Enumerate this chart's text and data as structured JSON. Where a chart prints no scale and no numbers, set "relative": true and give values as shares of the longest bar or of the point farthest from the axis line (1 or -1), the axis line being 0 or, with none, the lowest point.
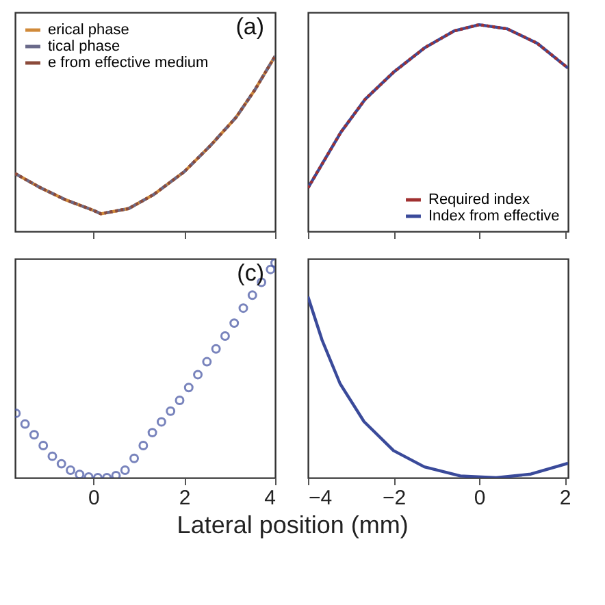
{
  "chart_data": [
    {
      "type": "line",
      "relative": true,
      "annotations": [
        "(a)"
      ],
      "legend": "top left",
      "tick_labels": false,
      "xlim": [
        -1.72,
        4
      ],
      "xticks": [
        0,
        2,
        4
      ],
      "x": [
        -1.72,
        -1.17,
        -0.61,
        0,
        0.17,
        0.78,
        1.33,
        2,
        2.58,
        3.14,
        3.56,
        4
      ],
      "series": [
        {
          "name": "erical phase",
          "color": "#d08a3a",
          "line_style": "solid",
          "values": [
            0.33,
            0.25,
            0.18,
            0.12,
            0.1,
            0.13,
            0.21,
            0.34,
            0.49,
            0.65,
            0.81,
            1.0
          ]
        },
        {
          "name": "tical phase",
          "color": "#6a6a8a",
          "line_style": "dashed",
          "values": [
            0.33,
            0.25,
            0.18,
            0.12,
            0.1,
            0.13,
            0.21,
            0.34,
            0.49,
            0.65,
            0.81,
            1.0
          ]
        },
        {
          "name": "e from effective medium",
          "color": "#8b4a3a",
          "line_style": "dotted",
          "values": [
            0.33,
            0.25,
            0.18,
            0.12,
            0.1,
            0.13,
            0.21,
            0.34,
            0.49,
            0.65,
            0.81,
            1.0
          ]
        }
      ]
    },
    {
      "type": "line",
      "relative": true,
      "legend": "bottom right",
      "tick_labels": false,
      "xlim": [
        -4,
        2.08
      ],
      "xticks": [
        -4,
        -2,
        0,
        2
      ],
      "x": [
        -4,
        -3.23,
        -2.66,
        -2,
        -1.26,
        -0.58,
        0,
        0.66,
        1.36,
        2.08
      ],
      "series": [
        {
          "name": "Required index",
          "color": "#a03030",
          "line_style": "dotted",
          "values": [
            0.21,
            0.48,
            0.64,
            0.77,
            0.89,
            0.97,
            1.0,
            0.98,
            0.91,
            0.79
          ]
        },
        {
          "name": "Index from effective",
          "color": "#3a4a9a",
          "line_style": "solid",
          "values": [
            0.21,
            0.48,
            0.64,
            0.77,
            0.89,
            0.97,
            1.0,
            0.98,
            0.91,
            0.79
          ]
        }
      ]
    },
    {
      "type": "scatter",
      "relative": true,
      "annotations": [
        "(c)"
      ],
      "xlabel": "Lateral position (mm)",
      "tick_labels": "x",
      "marker": "circle",
      "xlim": [
        -1.72,
        4
      ],
      "xticks": [
        0,
        2,
        4
      ],
      "x": [
        -1.7,
        -1.5,
        -1.3,
        -1.1,
        -0.9,
        -0.7,
        -0.5,
        -0.3,
        -0.1,
        0.1,
        0.3,
        0.5,
        0.7,
        0.9,
        1.1,
        1.3,
        1.5,
        1.7,
        1.9,
        2.1,
        2.3,
        2.5,
        2.7,
        2.9,
        3.1,
        3.3,
        3.5,
        3.7,
        3.9,
        4.0
      ],
      "series": [
        {
          "color": "#4050a0",
          "values": [
            0.3,
            0.25,
            0.2,
            0.15,
            0.1,
            0.065,
            0.035,
            0.015,
            0.003,
            0,
            0,
            0.01,
            0.035,
            0.09,
            0.15,
            0.21,
            0.26,
            0.31,
            0.36,
            0.42,
            0.48,
            0.54,
            0.6,
            0.66,
            0.72,
            0.79,
            0.85,
            0.91,
            0.97,
            1.0
          ]
        }
      ]
    },
    {
      "type": "line",
      "relative": true,
      "tick_labels": "x",
      "xlim": [
        -4,
        2.08
      ],
      "xticks": [
        -4,
        -2,
        0,
        2
      ],
      "x": [
        -4,
        -3.67,
        -3.25,
        -2.69,
        -2,
        -1.28,
        -0.44,
        0.4,
        1.21,
        2.08
      ],
      "series": [
        {
          "color": "#3a4a9a",
          "values": [
            1.0,
            0.76,
            0.52,
            0.31,
            0.15,
            0.06,
            0.01,
            0,
            0.02,
            0.08
          ]
        }
      ]
    }
  ]
}
